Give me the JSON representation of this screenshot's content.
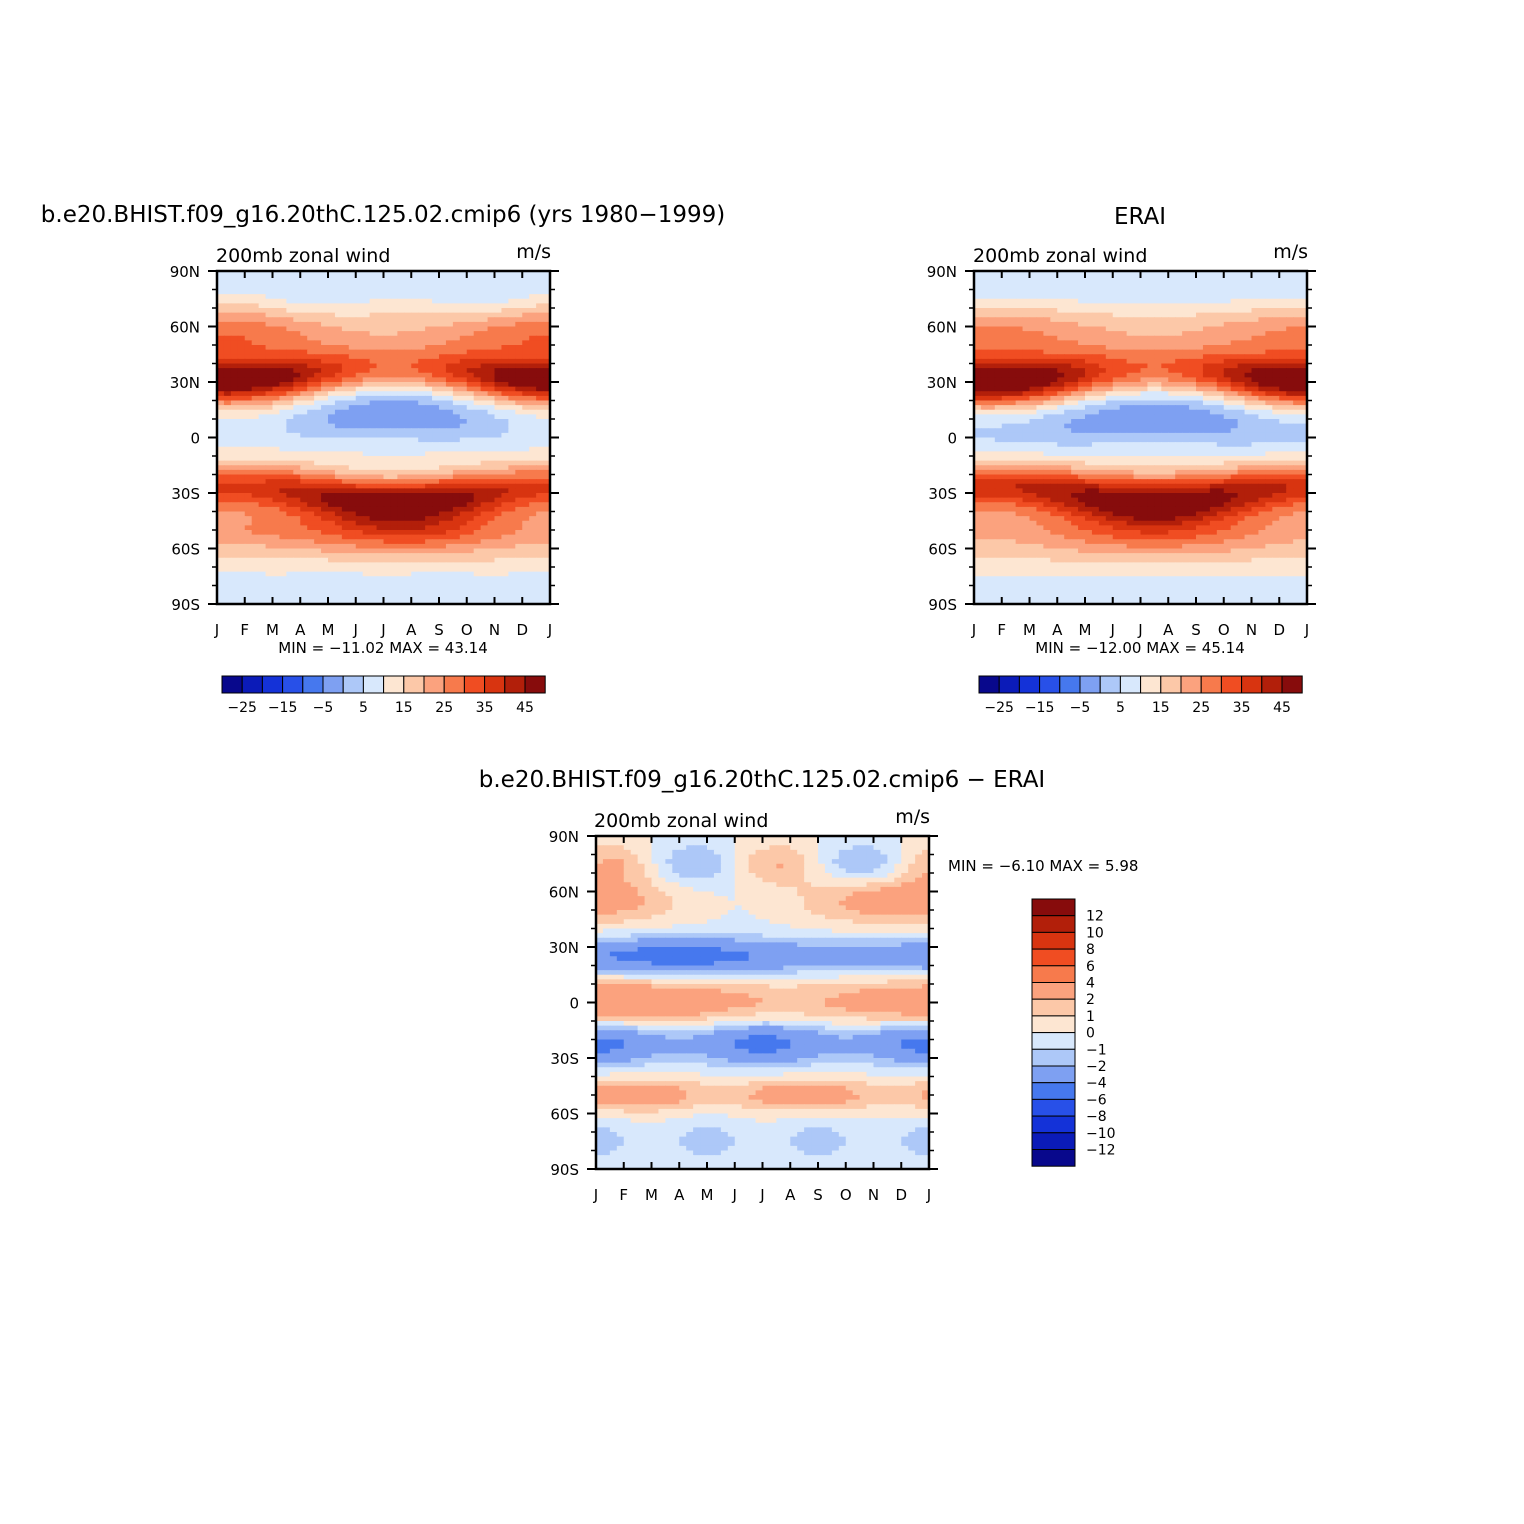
{
  "figure": {
    "top_title": "b.e20.BHIST.f09_g16.20thC.125.02.cmip6 (yrs 1980−1999)",
    "erai_title": "ERAI",
    "diff_title": "b.e20.BHIST.f09_g16.20thC.125.02.cmip6 − ERAI"
  },
  "colors": {
    "main_palette": [
      "#08088c",
      "#0b1bb8",
      "#1432d8",
      "#2850e8",
      "#4678ee",
      "#7ea0f2",
      "#adc8f8",
      "#d8e8fc",
      "#fde6d2",
      "#fcc8a8",
      "#fba27e",
      "#f77a4c",
      "#f04d22",
      "#d83410",
      "#b21f0a",
      "#870c0c"
    ],
    "diff_palette": [
      "#08088c",
      "#0b1bb8",
      "#1432d8",
      "#2850e8",
      "#4678ee",
      "#7ea0f2",
      "#adc8f8",
      "#d8e8fc",
      "#fde6d2",
      "#fcc8a8",
      "#fba27e",
      "#f77a4c",
      "#f04d22",
      "#d83410",
      "#b21f0a",
      "#870c0c"
    ]
  },
  "chart_data": [
    {
      "id": "model",
      "type": "heatmap",
      "title": "b.e20.BHIST.f09_g16.20thC.125.02.cmip6 (yrs 1980−1999)",
      "left_label": "200mb zonal wind",
      "right_label": "m/s",
      "x_ticks": [
        "J",
        "F",
        "M",
        "A",
        "M",
        "J",
        "J",
        "A",
        "S",
        "O",
        "N",
        "D",
        "J"
      ],
      "y_ticks": [
        "90N",
        "60N",
        "30N",
        "0",
        "30S",
        "60S",
        "90S"
      ],
      "ylim": [
        -90,
        90
      ],
      "stats": "MIN = −11.02  MAX =   43.14",
      "min": -11.02,
      "max": 43.14,
      "colorbar_labels": [
        "−25",
        "−15",
        "−5",
        "5",
        "15",
        "25",
        "35",
        "45"
      ],
      "levels": [
        -35,
        -30,
        -25,
        -20,
        -15,
        -10,
        -5,
        0,
        5,
        10,
        15,
        20,
        25,
        30,
        35,
        40,
        45
      ]
    },
    {
      "id": "erai",
      "type": "heatmap",
      "title": "ERAI",
      "left_label": "200mb zonal wind",
      "right_label": "m/s",
      "x_ticks": [
        "J",
        "F",
        "M",
        "A",
        "M",
        "J",
        "J",
        "A",
        "S",
        "O",
        "N",
        "D",
        "J"
      ],
      "y_ticks": [
        "90N",
        "60N",
        "30N",
        "0",
        "30S",
        "60S",
        "90S"
      ],
      "ylim": [
        -90,
        90
      ],
      "stats": "MIN = −12.00  MAX =   45.14",
      "min": -12.0,
      "max": 45.14,
      "colorbar_labels": [
        "−25",
        "−15",
        "−5",
        "5",
        "15",
        "25",
        "35",
        "45"
      ],
      "levels": [
        -35,
        -30,
        -25,
        -20,
        -15,
        -10,
        -5,
        0,
        5,
        10,
        15,
        20,
        25,
        30,
        35,
        40,
        45
      ]
    },
    {
      "id": "diff",
      "type": "heatmap",
      "title": "b.e20.BHIST.f09_g16.20thC.125.02.cmip6 − ERAI",
      "left_label": "200mb zonal wind",
      "right_label": "m/s",
      "x_ticks": [
        "J",
        "F",
        "M",
        "A",
        "M",
        "J",
        "J",
        "A",
        "S",
        "O",
        "N",
        "D",
        "J"
      ],
      "y_ticks": [
        "90N",
        "60N",
        "30N",
        "0",
        "30S",
        "60S",
        "90S"
      ],
      "ylim": [
        -90,
        90
      ],
      "stats": "MIN =   −6.10  MAX =    5.98",
      "min": -6.1,
      "max": 5.98,
      "colorbar_labels": [
        "12",
        "10",
        "8",
        "6",
        "4",
        "2",
        "1",
        "0",
        "−1",
        "−2",
        "−4",
        "−6",
        "−8",
        "−10",
        "−12"
      ],
      "levels": [
        -14,
        -12,
        -10,
        -8,
        -6,
        -4,
        -2,
        -1,
        0,
        1,
        2,
        4,
        6,
        8,
        10,
        12,
        14
      ]
    }
  ]
}
